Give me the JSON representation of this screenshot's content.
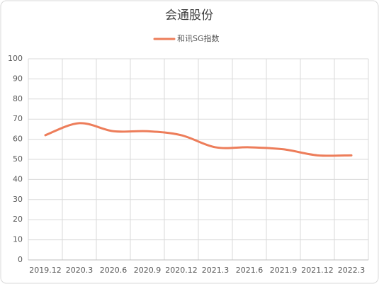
{
  "chart_data": {
    "type": "line",
    "title": "会通股份",
    "categories": [
      "2019.12",
      "2020.3",
      "2020.6",
      "2020.9",
      "2020.12",
      "2021.3",
      "2021.6",
      "2021.9",
      "2021.12",
      "2022.3"
    ],
    "series": [
      {
        "name": "和讯SG指数",
        "color": "#ed7d5a",
        "values": [
          62,
          68,
          64,
          64,
          62,
          56,
          56,
          55,
          52,
          52
        ]
      }
    ],
    "ylim": [
      0,
      100
    ],
    "yticks": [
      0,
      10,
      20,
      30,
      40,
      50,
      60,
      70,
      80,
      90,
      100
    ],
    "grid": true,
    "legend": "top"
  }
}
